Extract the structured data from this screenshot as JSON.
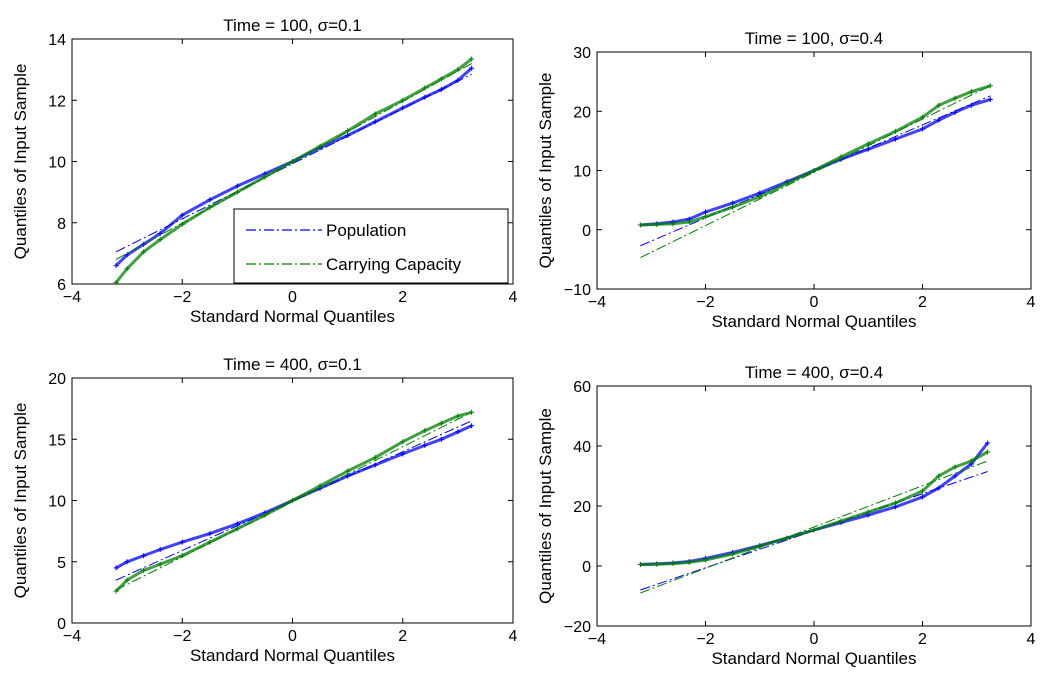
{
  "figure": {
    "legend": {
      "entries": [
        {
          "label": "Population",
          "color": "#0000ff"
        },
        {
          "label": "Carrying Capacity",
          "color": "#008000"
        }
      ]
    }
  },
  "chart_data": [
    {
      "type": "scatter",
      "title": "Time = 100, σ=0.1",
      "xlabel": "Standard Normal Quantiles",
      "ylabel": "Quantiles of Input Sample",
      "xlim": [
        -4,
        4
      ],
      "ylim": [
        6,
        14
      ],
      "xticks": [
        -4,
        -2,
        0,
        2,
        4
      ],
      "yticks": [
        6,
        8,
        10,
        12,
        14
      ],
      "legend_position": "lower-right",
      "series": [
        {
          "name": "Population",
          "color": "#0000ff",
          "x": [
            -3.2,
            -3.0,
            -2.7,
            -2.4,
            -2.0,
            -1.5,
            -1.0,
            -0.5,
            0,
            0.5,
            1.0,
            1.5,
            2.0,
            2.4,
            2.7,
            3.0,
            3.25
          ],
          "y": [
            6.6,
            6.95,
            7.3,
            7.65,
            8.25,
            8.75,
            9.2,
            9.6,
            10.0,
            10.45,
            10.85,
            11.3,
            11.75,
            12.1,
            12.35,
            12.65,
            13.05
          ],
          "ref_x": [
            -3.2,
            3.25
          ],
          "ref_y": [
            7.05,
            12.85
          ]
        },
        {
          "name": "Carrying Capacity",
          "color": "#008000",
          "x": [
            -3.2,
            -3.0,
            -2.7,
            -2.4,
            -2.0,
            -1.5,
            -1.0,
            -0.5,
            0,
            0.5,
            1.0,
            1.5,
            2.0,
            2.4,
            2.7,
            3.0,
            3.25
          ],
          "y": [
            6.05,
            6.5,
            7.05,
            7.45,
            7.95,
            8.5,
            9.0,
            9.5,
            10.0,
            10.5,
            11.0,
            11.55,
            12.0,
            12.4,
            12.7,
            13.0,
            13.35
          ],
          "ref_x": [
            -3.2,
            3.25
          ],
          "ref_y": [
            6.8,
            13.2
          ]
        }
      ]
    },
    {
      "type": "scatter",
      "title": "Time = 100, σ=0.4",
      "xlabel": "Standard Normal Quantiles",
      "ylabel": "Quantiles of Input Sample",
      "xlim": [
        -4,
        4
      ],
      "ylim": [
        -10,
        30
      ],
      "xticks": [
        -4,
        -2,
        0,
        2,
        4
      ],
      "yticks": [
        -10,
        0,
        10,
        20,
        30
      ],
      "series": [
        {
          "name": "Population",
          "color": "#0000ff",
          "x": [
            -3.2,
            -2.9,
            -2.6,
            -2.3,
            -2.0,
            -1.5,
            -1.0,
            -0.5,
            0,
            0.5,
            1.0,
            1.5,
            2.0,
            2.3,
            2.6,
            2.9,
            3.25
          ],
          "y": [
            0.8,
            1.0,
            1.3,
            1.8,
            3.0,
            4.5,
            6.2,
            8.1,
            10.0,
            11.9,
            13.6,
            15.3,
            17.0,
            18.5,
            19.8,
            21.0,
            22.0
          ],
          "ref_x": [
            -3.2,
            3.25
          ],
          "ref_y": [
            -2.7,
            22.6
          ]
        },
        {
          "name": "Carrying Capacity",
          "color": "#008000",
          "x": [
            -3.2,
            -2.9,
            -2.6,
            -2.3,
            -2.0,
            -1.5,
            -1.0,
            -0.5,
            0,
            0.5,
            1.0,
            1.5,
            2.0,
            2.3,
            2.6,
            2.9,
            3.25
          ],
          "y": [
            0.8,
            0.9,
            1.0,
            1.3,
            2.2,
            3.8,
            5.6,
            7.8,
            10.0,
            12.3,
            14.5,
            16.6,
            19.0,
            21.0,
            22.2,
            23.3,
            24.3
          ],
          "ref_x": [
            -3.2,
            3.25
          ],
          "ref_y": [
            -4.7,
            24.3
          ]
        }
      ]
    },
    {
      "type": "scatter",
      "title": "Time = 400, σ=0.1",
      "xlabel": "Standard Normal Quantiles",
      "ylabel": "Quantiles of Input Sample",
      "xlim": [
        -4,
        4
      ],
      "ylim": [
        0,
        20
      ],
      "xticks": [
        -4,
        -2,
        0,
        2,
        4
      ],
      "yticks": [
        0,
        5,
        10,
        15,
        20
      ],
      "series": [
        {
          "name": "Population",
          "color": "#0000ff",
          "x": [
            -3.2,
            -3.0,
            -2.7,
            -2.4,
            -2.0,
            -1.5,
            -1.0,
            -0.5,
            0,
            0.5,
            1.0,
            1.5,
            2.0,
            2.4,
            2.7,
            3.0,
            3.25
          ],
          "y": [
            4.5,
            5.0,
            5.5,
            6.0,
            6.6,
            7.3,
            8.1,
            9.0,
            10.0,
            11.0,
            12.0,
            12.9,
            13.8,
            14.5,
            15.0,
            15.6,
            16.1
          ],
          "ref_x": [
            -3.2,
            3.25
          ],
          "ref_y": [
            3.5,
            16.5
          ]
        },
        {
          "name": "Carrying Capacity",
          "color": "#008000",
          "x": [
            -3.2,
            -3.0,
            -2.7,
            -2.4,
            -2.0,
            -1.5,
            -1.0,
            -0.5,
            0,
            0.5,
            1.0,
            1.5,
            2.0,
            2.4,
            2.7,
            3.0,
            3.25
          ],
          "y": [
            2.6,
            3.5,
            4.3,
            4.8,
            5.5,
            6.6,
            7.7,
            8.8,
            10.0,
            11.2,
            12.4,
            13.5,
            14.8,
            15.7,
            16.3,
            16.9,
            17.2
          ],
          "ref_x": [
            -3.2,
            3.25
          ],
          "ref_y": [
            2.7,
            17.2
          ]
        }
      ]
    },
    {
      "type": "scatter",
      "title": "Time = 400, σ=0.4",
      "xlabel": "Standard Normal Quantiles",
      "ylabel": "Quantiles of Input Sample",
      "xlim": [
        -4,
        4
      ],
      "ylim": [
        -20,
        60
      ],
      "xticks": [
        -4,
        -2,
        0,
        2,
        4
      ],
      "yticks": [
        -20,
        0,
        20,
        40,
        60
      ],
      "series": [
        {
          "name": "Population",
          "color": "#0000ff",
          "x": [
            -3.2,
            -2.9,
            -2.6,
            -2.3,
            -2.0,
            -1.5,
            -1.0,
            -0.5,
            0,
            0.5,
            1.0,
            1.5,
            2.0,
            2.3,
            2.6,
            2.9,
            3.2
          ],
          "y": [
            0.5,
            0.7,
            1.0,
            1.5,
            2.5,
            4.5,
            6.8,
            9.3,
            12.0,
            14.5,
            17.0,
            19.7,
            23.0,
            26.0,
            30.0,
            34.0,
            41.0
          ],
          "ref_x": [
            -3.2,
            3.2
          ],
          "ref_y": [
            -8.0,
            31.5
          ]
        },
        {
          "name": "Carrying Capacity",
          "color": "#008000",
          "x": [
            -3.2,
            -2.9,
            -2.6,
            -2.3,
            -2.0,
            -1.5,
            -1.0,
            -0.5,
            0,
            0.5,
            1.0,
            1.5,
            2.0,
            2.3,
            2.6,
            2.9,
            3.2
          ],
          "y": [
            0.5,
            0.6,
            0.8,
            1.2,
            2.0,
            4.0,
            6.6,
            9.3,
            12.0,
            15.0,
            18.0,
            21.0,
            25.0,
            30.0,
            33.0,
            35.0,
            38.0
          ],
          "ref_x": [
            -3.2,
            3.2
          ],
          "ref_y": [
            -9.0,
            35.0
          ]
        }
      ]
    }
  ]
}
